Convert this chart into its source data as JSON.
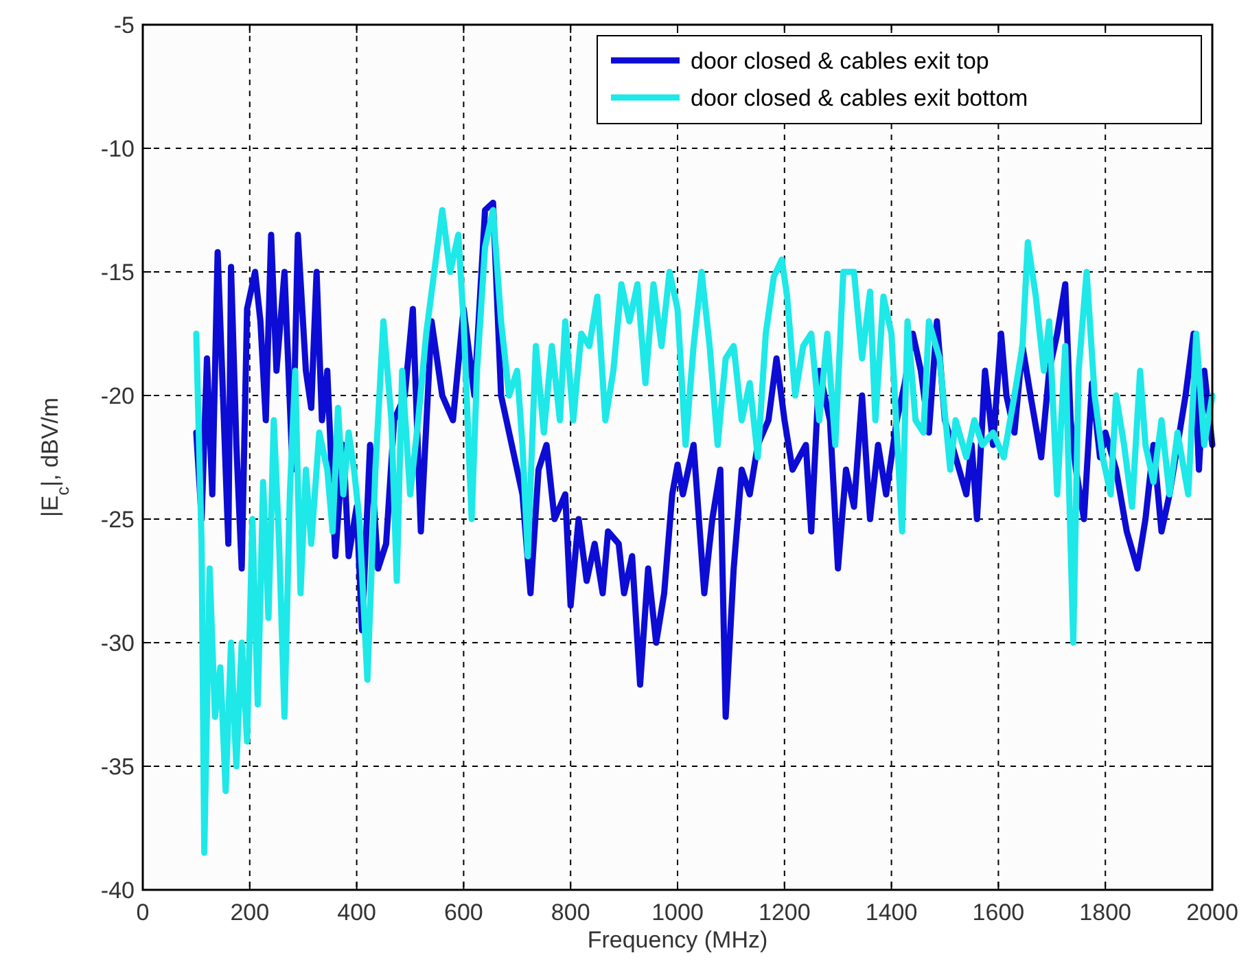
{
  "chart_data": {
    "type": "line",
    "xlabel": "Frequency (MHz)",
    "ylabel": "|E$_{c}$|, dBV/m",
    "xlim": [
      0,
      2000
    ],
    "ylim": [
      -40,
      -5
    ],
    "xticks": [
      0,
      200,
      400,
      600,
      800,
      1000,
      1200,
      1400,
      1600,
      1800,
      2000
    ],
    "yticks": [
      -40,
      -35,
      -30,
      -25,
      -20,
      -15,
      -10,
      -5
    ],
    "grid": true,
    "legend": "top right",
    "line_style": "solid",
    "marker": "none",
    "series": [
      {
        "name": "door closed & cables exit top",
        "color": "#0c0cd4",
        "x": [
          100,
          110,
          120,
          130,
          140,
          150,
          160,
          165,
          175,
          185,
          195,
          210,
          220,
          230,
          240,
          250,
          265,
          280,
          290,
          305,
          315,
          325,
          335,
          345,
          360,
          375,
          385,
          400,
          410,
          425,
          440,
          455,
          470,
          490,
          505,
          520,
          540,
          560,
          580,
          600,
          620,
          640,
          655,
          670,
          690,
          710,
          725,
          740,
          755,
          770,
          790,
          800,
          815,
          830,
          845,
          860,
          870,
          890,
          900,
          915,
          930,
          945,
          960,
          975,
          990,
          1000,
          1010,
          1030,
          1050,
          1065,
          1080,
          1090,
          1105,
          1120,
          1135,
          1150,
          1170,
          1185,
          1200,
          1215,
          1240,
          1250,
          1265,
          1285,
          1300,
          1315,
          1330,
          1345,
          1360,
          1375,
          1390,
          1410,
          1425,
          1440,
          1455,
          1470,
          1485,
          1500,
          1520,
          1540,
          1550,
          1560,
          1575,
          1590,
          1605,
          1615,
          1630,
          1645,
          1660,
          1680,
          1695,
          1710,
          1725,
          1735,
          1745,
          1760,
          1775,
          1790,
          1800,
          1820,
          1840,
          1860,
          1875,
          1890,
          1905,
          1920,
          1935,
          1950,
          1965,
          1975,
          1985,
          2000
        ],
        "values": [
          -21.5,
          -25,
          -18.5,
          -24,
          -14.2,
          -20,
          -26,
          -14.8,
          -22,
          -27,
          -16.5,
          -15,
          -17,
          -21,
          -13.5,
          -19,
          -15,
          -23,
          -13.5,
          -19,
          -20.5,
          -15,
          -21,
          -19,
          -26.5,
          -22,
          -26.5,
          -24.5,
          -29.5,
          -22,
          -27,
          -26,
          -21,
          -20,
          -16.5,
          -25.5,
          -17,
          -20,
          -21,
          -16.5,
          -20,
          -12.5,
          -12.2,
          -20,
          -22,
          -24,
          -28,
          -23,
          -22,
          -25,
          -24,
          -28.5,
          -25,
          -27.5,
          -26,
          -28,
          -25.5,
          -26,
          -28,
          -26.5,
          -31.7,
          -27,
          -30,
          -28,
          -24,
          -22.8,
          -24,
          -22,
          -28,
          -25,
          -23,
          -33,
          -27,
          -23,
          -24,
          -22,
          -21,
          -18.5,
          -21,
          -23,
          -22,
          -25.5,
          -19,
          -21,
          -27,
          -23,
          -24.5,
          -20,
          -25,
          -22,
          -24,
          -21,
          -19.5,
          -17.5,
          -19,
          -21.5,
          -17,
          -21,
          -22.5,
          -24,
          -22,
          -25,
          -19,
          -22,
          -17.5,
          -20,
          -21.5,
          -18,
          -20,
          -22.5,
          -19,
          -17.5,
          -15.5,
          -21,
          -23,
          -25,
          -19.5,
          -22.5,
          -21.5,
          -23,
          -25.5,
          -27,
          -25,
          -22,
          -25.5,
          -24,
          -22,
          -20,
          -17.5,
          -23,
          -19,
          -22
        ]
      },
      {
        "name": "door closed & cables exit bottom",
        "color": "#1ee8e8",
        "x": [
          100,
          110,
          115,
          125,
          135,
          145,
          155,
          165,
          175,
          185,
          195,
          205,
          215,
          225,
          235,
          245,
          255,
          265,
          275,
          285,
          295,
          305,
          315,
          330,
          345,
          355,
          365,
          375,
          385,
          395,
          405,
          420,
          435,
          450,
          465,
          475,
          485,
          500,
          515,
          530,
          545,
          560,
          575,
          590,
          600,
          615,
          625,
          640,
          655,
          670,
          685,
          700,
          710,
          720,
          735,
          750,
          765,
          780,
          790,
          805,
          820,
          835,
          850,
          865,
          880,
          895,
          910,
          925,
          940,
          955,
          970,
          985,
          1000,
          1015,
          1030,
          1045,
          1060,
          1075,
          1090,
          1105,
          1120,
          1135,
          1150,
          1165,
          1180,
          1195,
          1205,
          1220,
          1235,
          1250,
          1265,
          1280,
          1295,
          1310,
          1330,
          1345,
          1360,
          1370,
          1385,
          1400,
          1420,
          1430,
          1445,
          1460,
          1470,
          1490,
          1510,
          1520,
          1540,
          1555,
          1570,
          1590,
          1610,
          1630,
          1645,
          1655,
          1670,
          1685,
          1695,
          1710,
          1725,
          1740,
          1750,
          1765,
          1780,
          1795,
          1810,
          1820,
          1835,
          1850,
          1865,
          1875,
          1890,
          1905,
          1920,
          1935,
          1955,
          1970,
          1985,
          2000
        ],
        "values": [
          -17.5,
          -26,
          -38.5,
          -27,
          -33,
          -31,
          -36,
          -30,
          -35,
          -30,
          -34,
          -25,
          -32.5,
          -23.5,
          -29,
          -21,
          -26,
          -33,
          -24,
          -19,
          -28,
          -23,
          -26,
          -21.5,
          -23,
          -25.5,
          -20.5,
          -24,
          -21.5,
          -23,
          -25,
          -31.5,
          -23,
          -17,
          -21,
          -27.5,
          -19,
          -24,
          -21,
          -17.5,
          -15,
          -12.5,
          -15,
          -13.5,
          -17,
          -25,
          -19,
          -14,
          -12.5,
          -17,
          -20,
          -19,
          -22,
          -26.5,
          -18,
          -21.5,
          -18,
          -21,
          -17,
          -21,
          -17.5,
          -18,
          -16,
          -21,
          -19,
          -15.5,
          -17,
          -15.5,
          -19.5,
          -15.5,
          -18,
          -15,
          -16.5,
          -22,
          -18,
          -15,
          -18,
          -22,
          -18.5,
          -18,
          -21,
          -19.5,
          -22.5,
          -17.5,
          -15.2,
          -14.5,
          -16,
          -20,
          -18,
          -17.5,
          -21,
          -17.5,
          -22,
          -15,
          -15,
          -18.5,
          -15.8,
          -21,
          -16,
          -17.5,
          -25.5,
          -17,
          -21,
          -21.5,
          -17,
          -18.5,
          -23,
          -21,
          -22.5,
          -21,
          -22,
          -21.5,
          -22.5,
          -20,
          -18,
          -13.8,
          -16,
          -19,
          -17,
          -24,
          -18,
          -30,
          -19,
          -15,
          -20,
          -22.5,
          -24,
          -20,
          -22,
          -24.5,
          -19,
          -22,
          -23.5,
          -21,
          -24,
          -21.5,
          -24,
          -17.5,
          -22,
          -20
        ]
      }
    ]
  }
}
